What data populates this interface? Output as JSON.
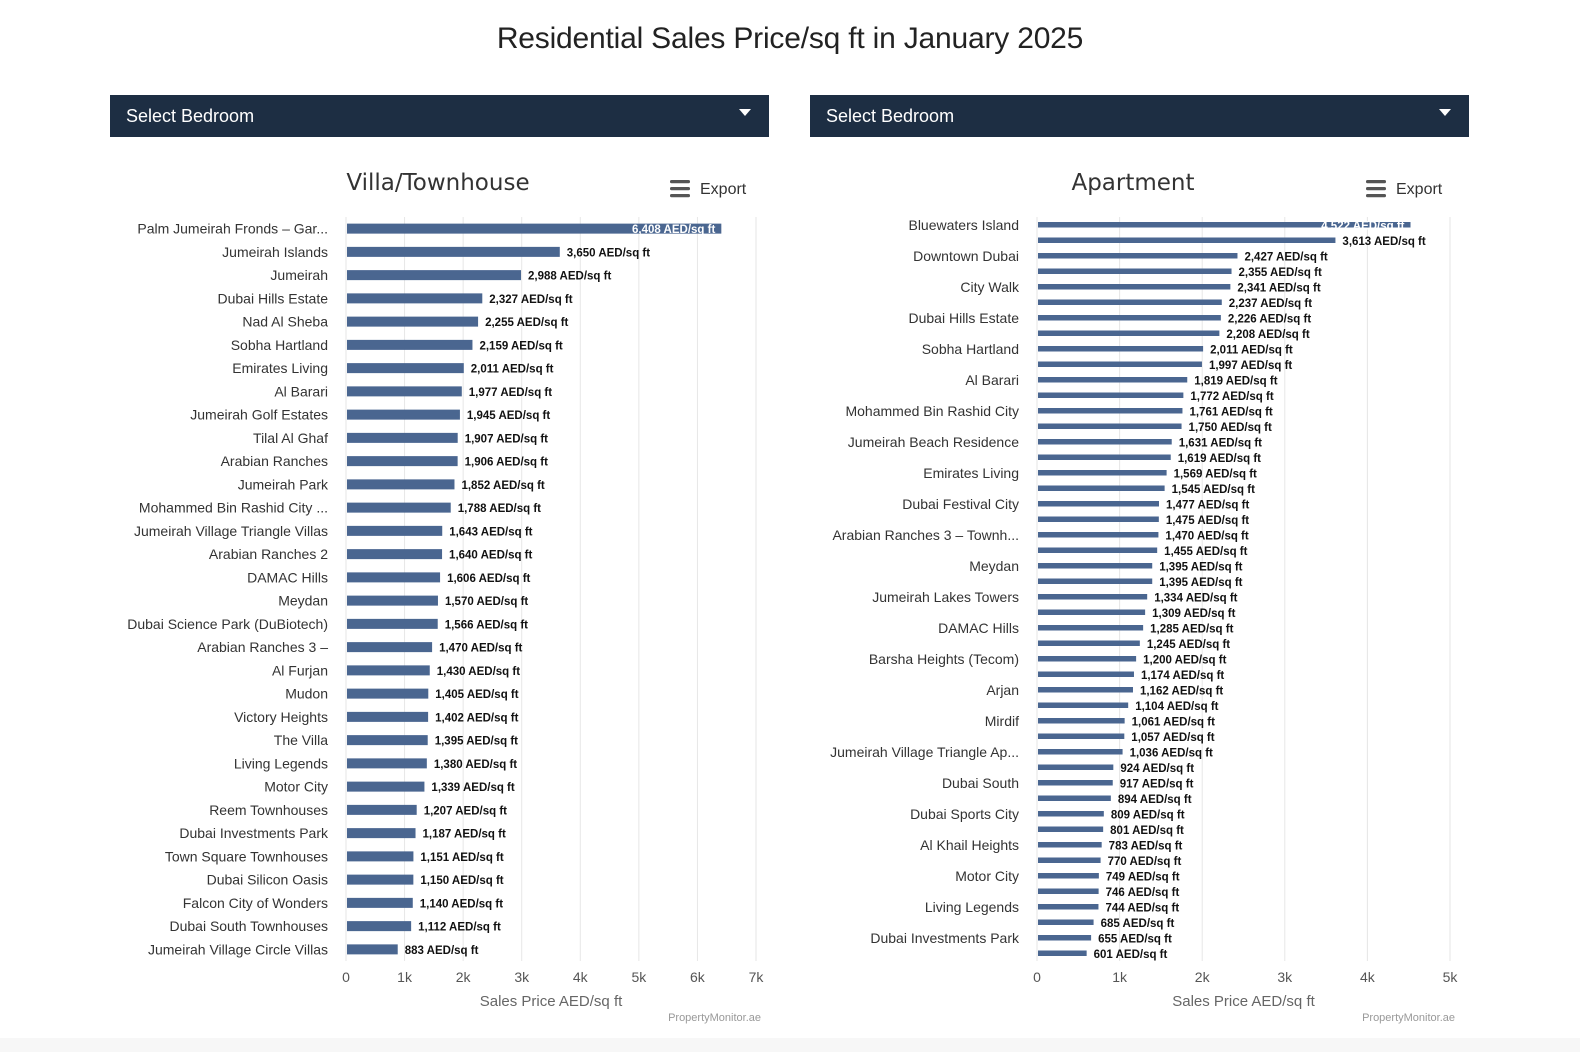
{
  "page": {
    "title": "Residential Sales Price/sq ft in January 2025"
  },
  "selectors": {
    "left": {
      "label": "Select Bedroom"
    },
    "right": {
      "label": "Select Bedroom"
    }
  },
  "colors": {
    "bar": "#4a6690",
    "header_bar": "#1d2e43",
    "grid": "#e6e6e6"
  },
  "chart_data": [
    {
      "type": "bar",
      "orientation": "horizontal",
      "title": "Villa/Townhouse",
      "export_label": "Export",
      "credit": "PropertyMonitor.ae",
      "xlabel": "Sales Price AED/sq ft",
      "xlim": [
        0,
        7000
      ],
      "xticks": [
        0,
        1000,
        2000,
        3000,
        4000,
        5000,
        6000,
        7000
      ],
      "xtick_labels": [
        "0",
        "1k",
        "2k",
        "3k",
        "4k",
        "5k",
        "6k",
        "7k"
      ],
      "value_suffix": " AED/sq ft",
      "data_label_inside_first": true,
      "categories": [
        "Palm Jumeirah Fronds – Gar...",
        "Jumeirah Islands",
        "Jumeirah",
        "Dubai Hills Estate",
        "Nad Al Sheba",
        "Sobha Hartland",
        "Emirates Living",
        "Al Barari",
        "Jumeirah Golf Estates",
        "Tilal Al Ghaf",
        "Arabian Ranches",
        "Jumeirah Park",
        "Mohammed Bin Rashid City ...",
        "Jumeirah Village Triangle Villas",
        "Arabian Ranches 2",
        "DAMAC Hills",
        "Meydan",
        "Dubai Science Park (DuBiotech)",
        "Arabian Ranches 3 –",
        "Al Furjan",
        "Mudon",
        "Victory Heights",
        "The Villa",
        "Living Legends",
        "Motor City",
        "Reem Townhouses",
        "Dubai Investments Park",
        "Town Square Townhouses",
        "Dubai Silicon Oasis",
        "Falcon City of Wonders",
        "Dubai South Townhouses",
        "Jumeirah Village Circle Villas"
      ],
      "values": [
        6408,
        3650,
        2988,
        2327,
        2255,
        2159,
        2011,
        1977,
        1945,
        1907,
        1906,
        1852,
        1788,
        1643,
        1640,
        1606,
        1570,
        1566,
        1470,
        1430,
        1405,
        1402,
        1395,
        1380,
        1339,
        1207,
        1187,
        1151,
        1150,
        1140,
        1112,
        883
      ]
    },
    {
      "type": "bar",
      "orientation": "horizontal",
      "title": "Apartment",
      "export_label": "Export",
      "credit": "PropertyMonitor.ae",
      "xlabel": "Sales Price AED/sq ft",
      "xlim": [
        0,
        5000
      ],
      "xticks": [
        0,
        1000,
        2000,
        3000,
        4000,
        5000
      ],
      "xtick_labels": [
        "0",
        "1k",
        "2k",
        "3k",
        "4k",
        "5k"
      ],
      "value_suffix": " AED/sq ft",
      "data_label_inside_first": true,
      "category_label_every": 2,
      "categories": [
        "Bluewaters Island",
        "",
        "Downtown Dubai",
        "",
        "City Walk",
        "",
        "Dubai Hills Estate",
        "",
        "Sobha Hartland",
        "",
        "Al Barari",
        "",
        "Mohammed Bin Rashid City",
        "",
        "Jumeirah Beach Residence",
        "",
        "Emirates Living",
        "",
        "Dubai Festival City",
        "",
        "Arabian Ranches 3 – Townh...",
        "",
        "Meydan",
        "",
        "Jumeirah Lakes Towers",
        "",
        "DAMAC Hills",
        "",
        "Barsha Heights (Tecom)",
        "",
        "Arjan",
        "",
        "Mirdif",
        "",
        "Jumeirah Village Triangle Ap...",
        "",
        "Dubai South",
        "",
        "Dubai Sports City",
        "",
        "Al Khail Heights",
        "",
        "Motor City",
        "",
        "Living Legends",
        "",
        "Dubai Investments Park",
        ""
      ],
      "values": [
        4522,
        3613,
        2427,
        2355,
        2341,
        2237,
        2226,
        2208,
        2011,
        1997,
        1819,
        1772,
        1761,
        1750,
        1631,
        1619,
        1569,
        1545,
        1477,
        1475,
        1470,
        1455,
        1395,
        1395,
        1334,
        1309,
        1285,
        1245,
        1200,
        1174,
        1162,
        1104,
        1061,
        1057,
        1036,
        924,
        917,
        894,
        809,
        801,
        783,
        770,
        749,
        746,
        744,
        685,
        655,
        601
      ]
    }
  ]
}
